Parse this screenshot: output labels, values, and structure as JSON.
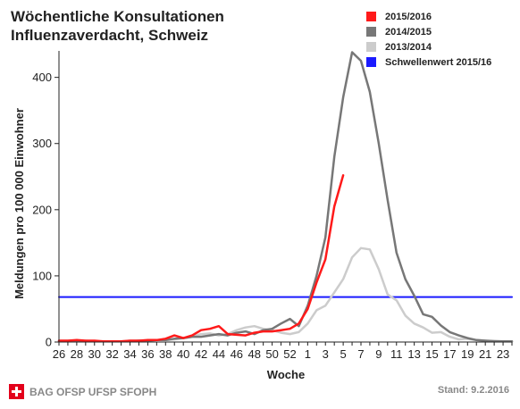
{
  "header": {
    "title_line1": "Wöchentliche Konsultationen",
    "title_line2": "Influenzaverdacht, Schweiz"
  },
  "footer": {
    "org": "BAG OFSP UFSP SFOPH",
    "stand": "Stand: 9.2.2016",
    "logo_icon": "swiss-cross-icon"
  },
  "chart_data": {
    "type": "line",
    "title": "Wöchentliche Konsultationen Influenzaverdacht, Schweiz",
    "xlabel": "Woche",
    "ylabel": "Meldungen pro 100 000 Einwohner",
    "ylim": [
      0,
      440
    ],
    "yticks": [
      0,
      100,
      200,
      300,
      400
    ],
    "grid": false,
    "legend_position": "top-right",
    "x_tick_labels": [
      "26",
      "28",
      "30",
      "32",
      "34",
      "36",
      "38",
      "40",
      "42",
      "44",
      "46",
      "48",
      "50",
      "52",
      "1",
      "3",
      "5",
      "7",
      "9",
      "11",
      "13",
      "15",
      "17",
      "19",
      "21",
      "23"
    ],
    "series": [
      {
        "name": "2015/2016",
        "color": "#ff1a1a",
        "x": [
          26,
          27,
          28,
          29,
          30,
          31,
          32,
          33,
          34,
          35,
          36,
          37,
          38,
          39,
          40,
          41,
          42,
          43,
          44,
          45,
          46,
          47,
          48,
          49,
          50,
          51,
          52,
          53,
          54,
          55,
          56,
          57,
          58
        ],
        "values": [
          2,
          2,
          3,
          2,
          2,
          1,
          1,
          1,
          2,
          2,
          3,
          3,
          5,
          10,
          6,
          10,
          18,
          20,
          24,
          12,
          11,
          10,
          14,
          16,
          16,
          18,
          20,
          28,
          50,
          90,
          125,
          205,
          252
        ]
      },
      {
        "name": "2014/2015",
        "color": "#777777",
        "x": [
          26,
          27,
          28,
          29,
          30,
          31,
          32,
          33,
          34,
          35,
          36,
          37,
          38,
          39,
          40,
          41,
          42,
          43,
          44,
          45,
          46,
          47,
          48,
          49,
          50,
          51,
          52,
          53,
          54,
          55,
          56,
          57,
          58,
          59,
          60,
          61,
          62,
          63,
          64,
          65,
          66,
          67,
          68,
          69,
          70,
          71,
          72,
          73,
          74,
          75,
          76,
          77
        ],
        "values": [
          1,
          1,
          2,
          1,
          1,
          1,
          1,
          1,
          1,
          2,
          2,
          3,
          3,
          5,
          6,
          8,
          8,
          10,
          12,
          10,
          14,
          16,
          12,
          18,
          20,
          28,
          35,
          24,
          55,
          100,
          158,
          280,
          370,
          438,
          425,
          378,
          300,
          215,
          135,
          95,
          70,
          42,
          38,
          25,
          15,
          10,
          6,
          3,
          2,
          1,
          1,
          1
        ]
      },
      {
        "name": "2013/2014",
        "color": "#cccccc",
        "x": [
          26,
          27,
          28,
          29,
          30,
          31,
          32,
          33,
          34,
          35,
          36,
          37,
          38,
          39,
          40,
          41,
          42,
          43,
          44,
          45,
          46,
          47,
          48,
          49,
          50,
          51,
          52,
          53,
          54,
          55,
          56,
          57,
          58,
          59,
          60,
          61,
          62,
          63,
          64,
          65,
          66,
          67,
          68,
          69,
          70,
          71,
          72,
          73,
          74,
          75,
          76,
          77
        ],
        "values": [
          2,
          2,
          2,
          2,
          1,
          1,
          1,
          1,
          2,
          2,
          2,
          3,
          3,
          4,
          6,
          8,
          12,
          13,
          10,
          12,
          18,
          22,
          24,
          20,
          18,
          14,
          12,
          15,
          28,
          48,
          55,
          75,
          95,
          128,
          142,
          140,
          110,
          72,
          63,
          40,
          28,
          22,
          14,
          15,
          8,
          4,
          5,
          3,
          2,
          2,
          1,
          1
        ]
      },
      {
        "name": "Schwellenwert 2015/16",
        "color": "#1a1aff",
        "x": [
          26,
          77
        ],
        "values": [
          68,
          68
        ]
      }
    ]
  }
}
